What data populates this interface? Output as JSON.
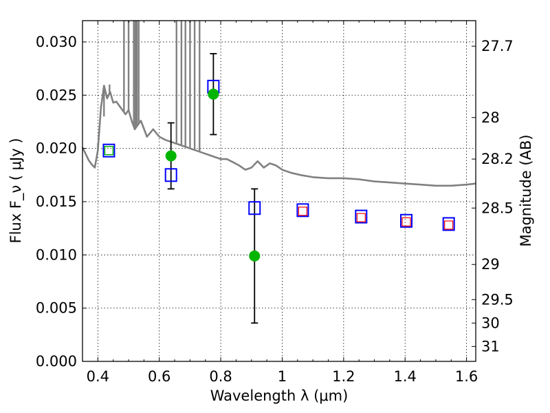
{
  "chart_data": {
    "type": "scatter",
    "xlabel": "Wavelength  λ (μm)",
    "ylabel": "Flux  F_ν  ( μJy )",
    "ylabel_right": "Magnitude (AB)",
    "xlim": [
      0.35,
      1.63
    ],
    "ylim": [
      0.0,
      0.032
    ],
    "grid": true,
    "x_ticks": [
      0.4,
      0.6,
      0.8,
      1.0,
      1.2,
      1.4,
      1.6
    ],
    "x_tick_labels": [
      "0.4",
      "0.6",
      "0.8",
      "1",
      "1.2",
      "1.4",
      "1.6"
    ],
    "y_ticks": [
      0.0,
      0.005,
      0.01,
      0.015,
      0.02,
      0.025,
      0.03
    ],
    "y_tick_labels": [
      "0.000",
      "0.005",
      "0.010",
      "0.015",
      "0.020",
      "0.025",
      "0.030"
    ],
    "right_ticks": [
      {
        "label": "27.7",
        "flux": 0.0296
      },
      {
        "label": "28",
        "flux": 0.0229
      },
      {
        "label": "28.2",
        "flux": 0.019
      },
      {
        "label": "28.5",
        "flux": 0.0144
      },
      {
        "label": "29",
        "flux": 0.0091
      },
      {
        "label": "29.5",
        "flux": 0.0058
      },
      {
        "label": "30",
        "flux": 0.0036
      },
      {
        "label": "31",
        "flux": 0.0014
      }
    ],
    "series": [
      {
        "marker": "green-circle",
        "color": "#00b400",
        "points": [
          {
            "x": 0.436,
            "y": 0.0198
          },
          {
            "x": 0.638,
            "y": 0.0193,
            "yerr": [
              0.0162,
              0.0224
            ]
          },
          {
            "x": 0.776,
            "y": 0.0251,
            "yerr": [
              0.0213,
              0.0289
            ]
          },
          {
            "x": 0.91,
            "y": 0.0099,
            "yerr": [
              0.0036,
              0.0162
            ]
          }
        ]
      },
      {
        "marker": "blue-open-square",
        "color": "#0000ff",
        "points": [
          {
            "x": 0.436,
            "y": 0.0198
          },
          {
            "x": 0.638,
            "y": 0.0175
          },
          {
            "x": 0.776,
            "y": 0.0258
          },
          {
            "x": 0.91,
            "y": 0.0144
          },
          {
            "x": 1.067,
            "y": 0.0142
          },
          {
            "x": 1.257,
            "y": 0.0136
          },
          {
            "x": 1.404,
            "y": 0.0132
          },
          {
            "x": 1.542,
            "y": 0.0129
          }
        ]
      },
      {
        "marker": "red-open-square-small",
        "color": "#ff0000",
        "points": [
          {
            "x": 1.067,
            "y": 0.0141
          },
          {
            "x": 1.257,
            "y": 0.0135
          },
          {
            "x": 1.404,
            "y": 0.0131
          },
          {
            "x": 1.542,
            "y": 0.0128
          }
        ]
      },
      {
        "marker": "sed-model-line",
        "color": "#808080",
        "curve": [
          [
            0.35,
            0.0201
          ],
          [
            0.36,
            0.0195
          ],
          [
            0.37,
            0.0189
          ],
          [
            0.38,
            0.0185
          ],
          [
            0.39,
            0.0182
          ],
          [
            0.4,
            0.0198
          ],
          [
            0.41,
            0.0238
          ],
          [
            0.42,
            0.0259
          ],
          [
            0.43,
            0.0247
          ],
          [
            0.44,
            0.0253
          ],
          [
            0.45,
            0.0243
          ],
          [
            0.46,
            0.0244
          ],
          [
            0.47,
            0.024
          ],
          [
            0.48,
            0.0236
          ],
          [
            0.49,
            0.0232
          ],
          [
            0.5,
            0.0236
          ],
          [
            0.51,
            0.0226
          ],
          [
            0.52,
            0.0218
          ],
          [
            0.54,
            0.0226
          ],
          [
            0.56,
            0.0211
          ],
          [
            0.58,
            0.0218
          ],
          [
            0.6,
            0.0211
          ],
          [
            0.62,
            0.0208
          ],
          [
            0.64,
            0.0206
          ],
          [
            0.66,
            0.0204
          ],
          [
            0.68,
            0.0202
          ],
          [
            0.7,
            0.02
          ],
          [
            0.72,
            0.0198
          ],
          [
            0.74,
            0.0196
          ],
          [
            0.76,
            0.0194
          ],
          [
            0.78,
            0.0192
          ],
          [
            0.8,
            0.019
          ],
          [
            0.82,
            0.019
          ],
          [
            0.84,
            0.0187
          ],
          [
            0.86,
            0.0184
          ],
          [
            0.88,
            0.018
          ],
          [
            0.9,
            0.0182
          ],
          [
            0.92,
            0.0188
          ],
          [
            0.94,
            0.0182
          ],
          [
            0.96,
            0.0186
          ],
          [
            0.98,
            0.0184
          ],
          [
            1.0,
            0.018
          ],
          [
            1.03,
            0.0177
          ],
          [
            1.06,
            0.0175
          ],
          [
            1.1,
            0.0173
          ],
          [
            1.15,
            0.0172
          ],
          [
            1.2,
            0.0172
          ],
          [
            1.25,
            0.0171
          ],
          [
            1.3,
            0.0169
          ],
          [
            1.35,
            0.0168
          ],
          [
            1.4,
            0.0167
          ],
          [
            1.45,
            0.0166
          ],
          [
            1.5,
            0.0165
          ],
          [
            1.55,
            0.0165
          ],
          [
            1.6,
            0.0166
          ],
          [
            1.63,
            0.0167
          ]
        ],
        "spikes": [
          {
            "x": 0.4,
            "y": 0.0205
          },
          {
            "x": 0.41,
            "y": 0.024
          },
          {
            "x": 0.42,
            "y": 0.023
          },
          {
            "x": 0.438,
            "y": 0.026
          },
          {
            "x": 0.485,
            "y": 0.032
          },
          {
            "x": 0.5,
            "y": 0.032
          },
          {
            "x": 0.517,
            "y": 0.032
          },
          {
            "x": 0.522,
            "y": 0.032
          },
          {
            "x": 0.527,
            "y": 0.032
          },
          {
            "x": 0.533,
            "y": 0.032
          },
          {
            "x": 0.656,
            "y": 0.032
          },
          {
            "x": 0.672,
            "y": 0.032
          },
          {
            "x": 0.685,
            "y": 0.032
          },
          {
            "x": 0.7,
            "y": 0.032
          },
          {
            "x": 0.715,
            "y": 0.032
          },
          {
            "x": 0.731,
            "y": 0.032
          }
        ]
      }
    ]
  }
}
